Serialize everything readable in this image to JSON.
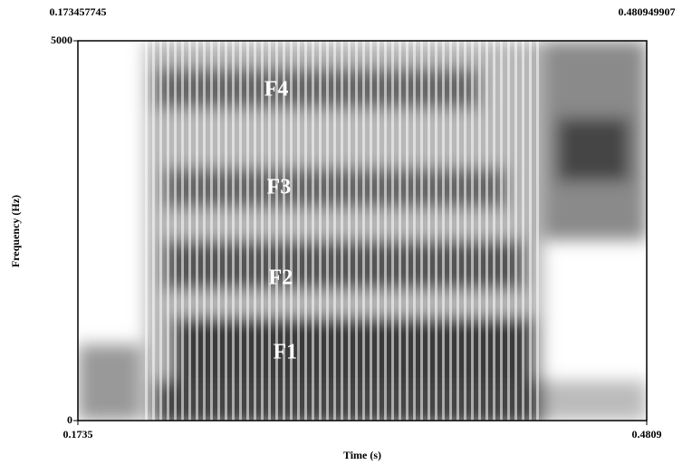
{
  "chart_data": {
    "type": "spectrogram",
    "x_label": "Time (s)",
    "y_label": "Frequency (Hz)",
    "xlim": [
      0.173457745,
      0.480949907
    ],
    "xticks": [
      {
        "value": 0.173457745,
        "label": "0.1735"
      },
      {
        "value": 0.480949907,
        "label": "0.4809"
      }
    ],
    "ylim": [
      0,
      5000
    ],
    "yticks": [
      0,
      5000
    ],
    "annotations": [
      {
        "text": "F4",
        "x": 0.2807,
        "y": 4344
      },
      {
        "text": "F3",
        "x": 0.2821,
        "y": 3055
      },
      {
        "text": "F2",
        "x": 0.2831,
        "y": 1862
      },
      {
        "text": "F1",
        "x": 0.2855,
        "y": 883
      }
    ]
  }
}
